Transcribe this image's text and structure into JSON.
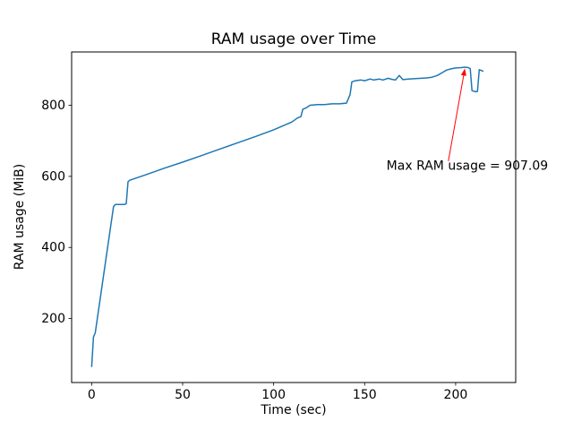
{
  "chart_data": {
    "type": "line",
    "title": "RAM usage over Time",
    "xlabel": "Time (sec)",
    "ylabel": "RAM usage (MiB)",
    "xlim": [
      -11,
      233
    ],
    "ylim": [
      20,
      950
    ],
    "xticks": [
      0,
      50,
      100,
      150,
      200
    ],
    "yticks": [
      200,
      400,
      600,
      800
    ],
    "grid": false,
    "legend": "none",
    "max_value": 907.09,
    "series": [
      {
        "name": "RAM usage (MiB)",
        "color": "#1f77b4",
        "points": [
          [
            0,
            65
          ],
          [
            1,
            148
          ],
          [
            2,
            160
          ],
          [
            12,
            515
          ],
          [
            13,
            521
          ],
          [
            18,
            521
          ],
          [
            19,
            523
          ],
          [
            20,
            585
          ],
          [
            21,
            589
          ],
          [
            30,
            605
          ],
          [
            40,
            623
          ],
          [
            50,
            640
          ],
          [
            60,
            658
          ],
          [
            70,
            676
          ],
          [
            80,
            694
          ],
          [
            90,
            712
          ],
          [
            100,
            731
          ],
          [
            110,
            753
          ],
          [
            113,
            764
          ],
          [
            115,
            768
          ],
          [
            116,
            789
          ],
          [
            118,
            793
          ],
          [
            120,
            800
          ],
          [
            124,
            802
          ],
          [
            128,
            802
          ],
          [
            132,
            804
          ],
          [
            136,
            804
          ],
          [
            140,
            806
          ],
          [
            142,
            830
          ],
          [
            143,
            866
          ],
          [
            145,
            869
          ],
          [
            148,
            871
          ],
          [
            150,
            869
          ],
          [
            153,
            874
          ],
          [
            155,
            871
          ],
          [
            158,
            874
          ],
          [
            160,
            871
          ],
          [
            163,
            876
          ],
          [
            165,
            873
          ],
          [
            167,
            871
          ],
          [
            169,
            884
          ],
          [
            171,
            872
          ],
          [
            174,
            874
          ],
          [
            178,
            875
          ],
          [
            181,
            876
          ],
          [
            184,
            877
          ],
          [
            187,
            879
          ],
          [
            190,
            884
          ],
          [
            193,
            893
          ],
          [
            195,
            899
          ],
          [
            198,
            903
          ],
          [
            200,
            905
          ],
          [
            203,
            906
          ],
          [
            205,
            907.09
          ],
          [
            207,
            906
          ],
          [
            208,
            903
          ],
          [
            209,
            841
          ],
          [
            211,
            838
          ],
          [
            212,
            839
          ],
          [
            213,
            900
          ],
          [
            214,
            898
          ],
          [
            215,
            896
          ]
        ]
      }
    ],
    "annotation": {
      "text": "Max RAM usage = 907.09",
      "color": "#ff0000",
      "text_xy": [
        162,
        618
      ],
      "arrow_tail": [
        196,
        643
      ],
      "arrow_tip": [
        205,
        901
      ]
    }
  }
}
